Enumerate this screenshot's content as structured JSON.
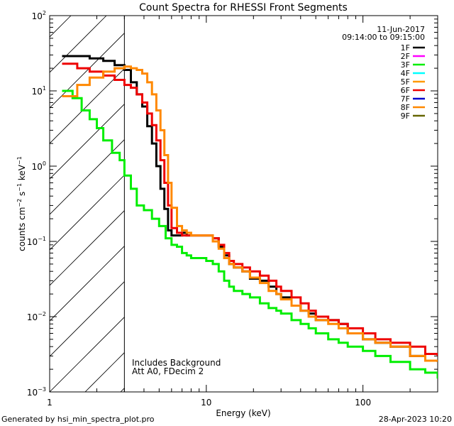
{
  "chart_data": {
    "type": "line",
    "title": "Count Spectra for RHESSI Front Segments",
    "xlabel": "Energy (keV)",
    "ylabel_parts": {
      "counts": "counts cm",
      "exp_cm": "−2",
      "s": " s",
      "exp_s": "−1",
      "kev": " keV",
      "exp_kev": "−1"
    },
    "x_scale": "log",
    "y_scale": "log",
    "xlim": [
      1,
      300
    ],
    "ylim": [
      0.001,
      100
    ],
    "x_major_ticks": [
      {
        "v": 1,
        "label": "1"
      },
      {
        "v": 10,
        "label": "10"
      },
      {
        "v": 100,
        "label": "100"
      }
    ],
    "y_major_ticks": [
      {
        "v": 100,
        "base": "10",
        "exp": "2"
      },
      {
        "v": 10,
        "base": "10",
        "exp": "1"
      },
      {
        "v": 1,
        "base": "10",
        "exp": "0"
      },
      {
        "v": 0.1,
        "base": "10",
        "exp": "−1"
      },
      {
        "v": 0.01,
        "base": "10",
        "exp": "−2"
      },
      {
        "v": 0.001,
        "base": "10",
        "exp": "−3"
      }
    ],
    "date": "11-Jun-2017",
    "time_range": "09:14:00 to 09:15:00",
    "annotations": [
      "Includes Background",
      "Att A0, FDecim 2"
    ],
    "shaded_region_below_kev": 3,
    "series": [
      {
        "name": "1F",
        "color": "#000000",
        "x": [
          1.2,
          1.5,
          1.8,
          2.2,
          2.6,
          3.0,
          3.3,
          3.6,
          3.9,
          4.2,
          4.5,
          4.8,
          5.1,
          5.4,
          5.7,
          6.0,
          6.5,
          7.0,
          7.5,
          8.0,
          9.0,
          10.0,
          11,
          12,
          13,
          14,
          15,
          17,
          19,
          22,
          25,
          28,
          30,
          35,
          40,
          45,
          50,
          60,
          70,
          80,
          100,
          120,
          150,
          200,
          250,
          300
        ],
        "y": [
          29,
          29,
          27,
          25,
          22,
          19,
          13,
          9,
          6.2,
          3.4,
          2.0,
          1.0,
          0.5,
          0.27,
          0.14,
          0.12,
          0.12,
          0.13,
          0.12,
          0.12,
          0.12,
          0.12,
          0.11,
          0.085,
          0.065,
          0.05,
          0.045,
          0.04,
          0.032,
          0.03,
          0.025,
          0.02,
          0.018,
          0.014,
          0.012,
          0.011,
          0.009,
          0.009,
          0.008,
          0.006,
          0.005,
          0.0045,
          0.004,
          0.003,
          0.0026,
          0.0025
        ]
      },
      {
        "name": "2F",
        "color": "#ff00ff",
        "x": [],
        "y": []
      },
      {
        "name": "3F",
        "color": "#00ee00",
        "x": [
          1.2,
          1.4,
          1.6,
          1.8,
          2.0,
          2.2,
          2.5,
          2.8,
          3.0,
          3.3,
          3.6,
          4.0,
          4.5,
          5.0,
          5.5,
          6.0,
          6.5,
          7.0,
          7.5,
          8.0,
          9.0,
          10,
          11,
          12,
          13,
          14,
          15,
          17,
          19,
          22,
          25,
          28,
          30,
          35,
          40,
          45,
          50,
          60,
          70,
          80,
          100,
          120,
          150,
          200,
          250,
          300
        ],
        "y": [
          10,
          8,
          5.5,
          4.2,
          3.2,
          2.2,
          1.5,
          1.2,
          0.75,
          0.5,
          0.3,
          0.26,
          0.2,
          0.16,
          0.11,
          0.09,
          0.085,
          0.07,
          0.065,
          0.06,
          0.06,
          0.055,
          0.05,
          0.04,
          0.03,
          0.025,
          0.022,
          0.02,
          0.018,
          0.015,
          0.013,
          0.012,
          0.011,
          0.009,
          0.008,
          0.007,
          0.006,
          0.005,
          0.0045,
          0.004,
          0.0035,
          0.003,
          0.0025,
          0.002,
          0.0018,
          0.0015
        ]
      },
      {
        "name": "4F",
        "color": "#00ffff",
        "x": [],
        "y": []
      },
      {
        "name": "5F",
        "color": "#ff9900",
        "x": [],
        "y": []
      },
      {
        "name": "6F",
        "color": "#ee0000",
        "x": [
          1.2,
          1.5,
          1.8,
          2.2,
          2.6,
          3.0,
          3.3,
          3.6,
          3.9,
          4.2,
          4.5,
          4.8,
          5.1,
          5.4,
          5.7,
          6.0,
          6.5,
          7.0,
          7.5,
          8.0,
          9.0,
          10,
          11,
          12,
          13,
          14,
          15,
          17,
          19,
          22,
          25,
          28,
          30,
          35,
          40,
          45,
          50,
          60,
          70,
          80,
          100,
          120,
          150,
          200,
          250,
          300
        ],
        "y": [
          23,
          20,
          18,
          16,
          14,
          12,
          11,
          9,
          7,
          5,
          3.5,
          2.2,
          1.2,
          0.6,
          0.3,
          0.15,
          0.13,
          0.12,
          0.12,
          0.12,
          0.12,
          0.12,
          0.11,
          0.09,
          0.07,
          0.055,
          0.05,
          0.045,
          0.04,
          0.035,
          0.03,
          0.025,
          0.022,
          0.018,
          0.015,
          0.012,
          0.01,
          0.009,
          0.008,
          0.007,
          0.006,
          0.005,
          0.0045,
          0.004,
          0.0032,
          0.003
        ]
      },
      {
        "name": "7F",
        "color": "#0000cc",
        "x": [],
        "y": []
      },
      {
        "name": "8F",
        "color": "#ff8800",
        "x": [
          1.2,
          1.5,
          1.8,
          2.2,
          2.6,
          3.0,
          3.3,
          3.6,
          3.9,
          4.2,
          4.5,
          4.8,
          5.1,
          5.4,
          5.7,
          6.0,
          6.5,
          7.0,
          7.5,
          8.0,
          9.0,
          10,
          11,
          12,
          13,
          14,
          15,
          17,
          19,
          22,
          25,
          28,
          30,
          35,
          40,
          45,
          50,
          60,
          70,
          80,
          100,
          120,
          150,
          200,
          250,
          300
        ],
        "y": [
          8.5,
          12,
          15,
          18,
          20,
          21,
          20,
          19,
          17,
          13,
          9,
          5.5,
          3.0,
          1.4,
          0.6,
          0.28,
          0.16,
          0.14,
          0.13,
          0.12,
          0.12,
          0.12,
          0.1,
          0.08,
          0.06,
          0.05,
          0.045,
          0.04,
          0.033,
          0.028,
          0.022,
          0.02,
          0.017,
          0.014,
          0.012,
          0.01,
          0.009,
          0.008,
          0.007,
          0.006,
          0.005,
          0.0045,
          0.004,
          0.003,
          0.0026,
          0.0025
        ]
      },
      {
        "name": "9F",
        "color": "#666600",
        "x": [],
        "y": []
      }
    ]
  },
  "footer": {
    "generated_by": "Generated by hsi_min_spectra_plot.pro",
    "timestamp": "28-Apr-2023 10:20"
  }
}
